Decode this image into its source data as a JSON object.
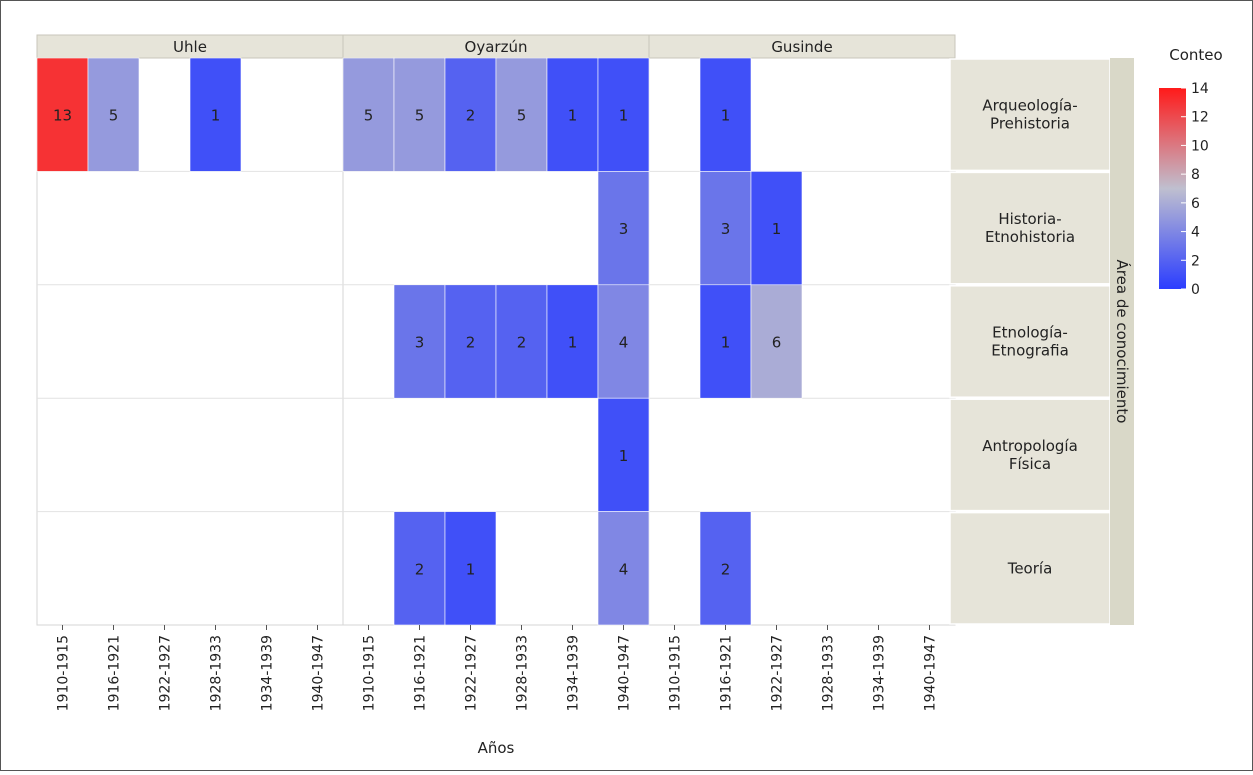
{
  "chart_data": {
    "type": "heatmap",
    "facets": [
      "Uhle",
      "Oyarzún",
      "Gusinde"
    ],
    "x_categories": [
      "1910-1915",
      "1916-1921",
      "1922-1927",
      "1928-1933",
      "1934-1939",
      "1940-1947"
    ],
    "rows": [
      "Arqueología-\nPrehistoria",
      "Historia-\nEtnohistoria",
      "Etnología-\nEtnografia",
      "Antropología\nFísica",
      "Teoría"
    ],
    "cells": [
      {
        "facet": 0,
        "row": 0,
        "col": 0,
        "value": 13
      },
      {
        "facet": 0,
        "row": 0,
        "col": 1,
        "value": 5
      },
      {
        "facet": 0,
        "row": 0,
        "col": 3,
        "value": 1
      },
      {
        "facet": 1,
        "row": 0,
        "col": 0,
        "value": 5
      },
      {
        "facet": 1,
        "row": 0,
        "col": 1,
        "value": 5
      },
      {
        "facet": 1,
        "row": 0,
        "col": 2,
        "value": 2
      },
      {
        "facet": 1,
        "row": 0,
        "col": 3,
        "value": 5
      },
      {
        "facet": 1,
        "row": 0,
        "col": 4,
        "value": 1
      },
      {
        "facet": 1,
        "row": 0,
        "col": 5,
        "value": 1
      },
      {
        "facet": 2,
        "row": 0,
        "col": 1,
        "value": 1
      },
      {
        "facet": 1,
        "row": 1,
        "col": 5,
        "value": 3
      },
      {
        "facet": 2,
        "row": 1,
        "col": 1,
        "value": 3
      },
      {
        "facet": 2,
        "row": 1,
        "col": 2,
        "value": 1
      },
      {
        "facet": 1,
        "row": 2,
        "col": 1,
        "value": 3
      },
      {
        "facet": 1,
        "row": 2,
        "col": 2,
        "value": 2
      },
      {
        "facet": 1,
        "row": 2,
        "col": 3,
        "value": 2
      },
      {
        "facet": 1,
        "row": 2,
        "col": 4,
        "value": 1
      },
      {
        "facet": 1,
        "row": 2,
        "col": 5,
        "value": 4
      },
      {
        "facet": 2,
        "row": 2,
        "col": 1,
        "value": 1
      },
      {
        "facet": 2,
        "row": 2,
        "col": 2,
        "value": 6
      },
      {
        "facet": 1,
        "row": 3,
        "col": 5,
        "value": 1
      },
      {
        "facet": 1,
        "row": 4,
        "col": 1,
        "value": 2
      },
      {
        "facet": 1,
        "row": 4,
        "col": 2,
        "value": 1
      },
      {
        "facet": 1,
        "row": 4,
        "col": 5,
        "value": 4
      },
      {
        "facet": 2,
        "row": 4,
        "col": 1,
        "value": 2
      }
    ],
    "xlabel": "Años",
    "ylabel": "Área de conocimiento",
    "legend": {
      "title": "Conteo",
      "min": 0,
      "max": 14,
      "ticks": [
        0,
        2,
        4,
        6,
        8,
        10,
        12,
        14
      ],
      "placement": "right"
    },
    "color_scale": {
      "low": "#2b3dff",
      "mid": "#bfbfcf",
      "high": "#ff1a1a",
      "midpoint": 7
    },
    "grid": false
  },
  "colors": {
    "strip_fill": "#e6e4d9",
    "strip_border": "#c8c6bb",
    "row_axis_fill": "#d9d8c8"
  }
}
